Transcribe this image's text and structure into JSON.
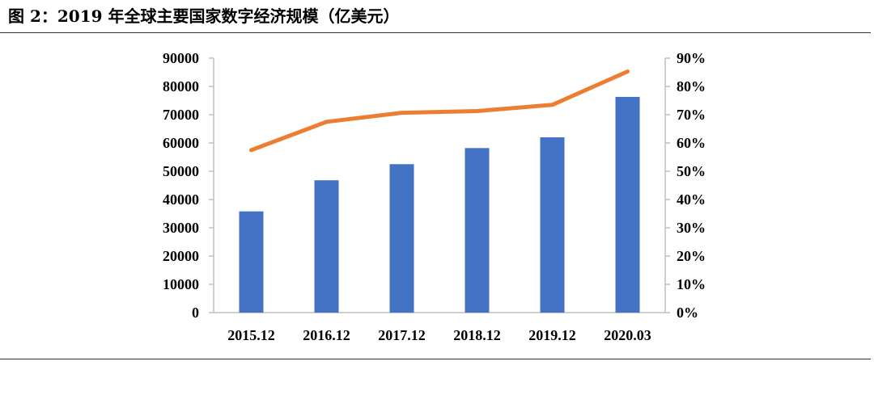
{
  "figure": {
    "title": "图 2：2019 年全球主要国家数字经济规模（亿美元）"
  },
  "chart_data": {
    "type": "bar",
    "categories": [
      "2015.12",
      "2016.12",
      "2017.12",
      "2018.12",
      "2019.12",
      "2020.03"
    ],
    "series": [
      {
        "type": "bar",
        "axis": "left",
        "color": "#4472C4",
        "values": [
          35800,
          46800,
          52500,
          58200,
          62000,
          76300
        ]
      },
      {
        "type": "line",
        "axis": "right",
        "color": "#ED7D31",
        "values": [
          0.575,
          0.675,
          0.707,
          0.713,
          0.735,
          0.853
        ]
      }
    ],
    "y_left": {
      "min": 0,
      "max": 90000,
      "ticks": [
        "0",
        "10000",
        "20000",
        "30000",
        "40000",
        "50000",
        "60000",
        "70000",
        "80000",
        "90000"
      ]
    },
    "y_right": {
      "min": 0,
      "max": 0.9,
      "ticks": [
        "0%",
        "10%",
        "20%",
        "30%",
        "40%",
        "50%",
        "60%",
        "70%",
        "80%",
        "90%"
      ]
    },
    "grid": false,
    "legend": "none"
  }
}
